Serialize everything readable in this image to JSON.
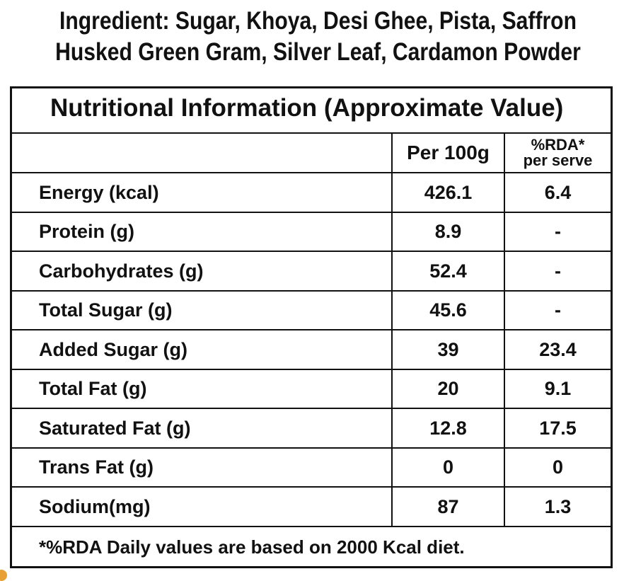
{
  "ingredients": {
    "line1": "Ingredient: Sugar, Khoya, Desi Ghee, Pista, Saffron",
    "line2": "Husked Green Gram, Silver Leaf, Cardamon Powder"
  },
  "table": {
    "title": "Nutritional Information (Approximate Value)",
    "headers": {
      "name": "",
      "per100g": "Per 100g",
      "rda_line1": "%RDA*",
      "rda_line2": "per serve"
    },
    "rows": [
      {
        "name": "Energy (kcal)",
        "per100g": "426.1",
        "rda": "6.4"
      },
      {
        "name": "Protein (g)",
        "per100g": "8.9",
        "rda": "-"
      },
      {
        "name": "Carbohydrates (g)",
        "per100g": "52.4",
        "rda": "-"
      },
      {
        "name": "Total Sugar (g)",
        "per100g": "45.6",
        "rda": "-"
      },
      {
        "name": "Added Sugar (g)",
        "per100g": "39",
        "rda": "23.4"
      },
      {
        "name": "Total Fat (g)",
        "per100g": "20",
        "rda": "9.1"
      },
      {
        "name": "Saturated Fat (g)",
        "per100g": "12.8",
        "rda": "17.5"
      },
      {
        "name": "Trans Fat (g)",
        "per100g": "0",
        "rda": "0"
      },
      {
        "name": "Sodium(mg)",
        "per100g": "87",
        "rda": "1.3"
      }
    ],
    "footnote": "*%RDA Daily values are based on 2000 Kcal diet."
  },
  "colors": {
    "text": "#111111",
    "border": "#111111",
    "background": "#ffffff",
    "corner_accent": "#e8a034"
  }
}
